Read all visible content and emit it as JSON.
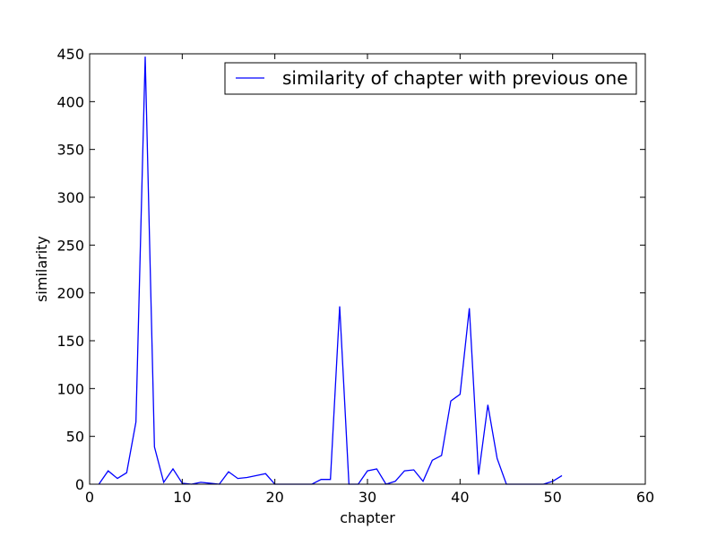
{
  "chart_data": {
    "type": "line",
    "title": "",
    "xlabel": "chapter",
    "ylabel": "similarity",
    "xlim": [
      0,
      60
    ],
    "ylim": [
      0,
      450
    ],
    "xticks": [
      0,
      10,
      20,
      30,
      40,
      50,
      60
    ],
    "yticks": [
      0,
      50,
      100,
      150,
      200,
      250,
      300,
      350,
      400,
      450
    ],
    "grid": false,
    "legend_position": "top-right",
    "colors": {
      "series": "#0000ff",
      "axes": "#000000",
      "background": "#ffffff"
    },
    "series": [
      {
        "name": "similarity of chapter with previous one",
        "x": [
          1,
          2,
          3,
          4,
          5,
          6,
          7,
          8,
          9,
          10,
          11,
          12,
          13,
          14,
          15,
          16,
          17,
          18,
          19,
          20,
          21,
          22,
          23,
          24,
          25,
          26,
          27,
          28,
          29,
          30,
          31,
          32,
          33,
          34,
          35,
          36,
          37,
          38,
          39,
          40,
          41,
          42,
          43,
          44,
          45,
          46,
          47,
          48,
          49,
          50,
          51
        ],
        "values": [
          0,
          14,
          6,
          12,
          65,
          447,
          39,
          2,
          16,
          1,
          0,
          2,
          1,
          0,
          13,
          6,
          7,
          9,
          11,
          0,
          0,
          0,
          0,
          0,
          5,
          5,
          186,
          0,
          0,
          14,
          16,
          0,
          3,
          14,
          15,
          3,
          25,
          30,
          87,
          94,
          184,
          10,
          83,
          27,
          0,
          0,
          0,
          0,
          0,
          3,
          9
        ]
      }
    ]
  }
}
